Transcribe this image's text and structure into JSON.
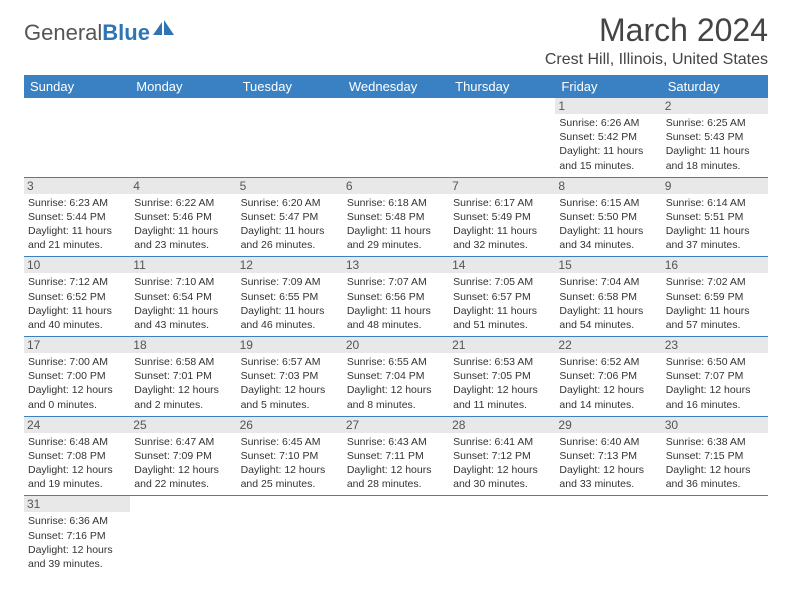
{
  "logo": {
    "text1": "General",
    "text2": "Blue"
  },
  "title": "March 2024",
  "location": "Crest Hill, Illinois, United States",
  "colors": {
    "header_bg": "#3a81c4",
    "header_text": "#ffffff",
    "row_border": "#3a81c4",
    "daynum_bg": "#e8e8e8",
    "logo_blue": "#2e75b6"
  },
  "day_headers": [
    "Sunday",
    "Monday",
    "Tuesday",
    "Wednesday",
    "Thursday",
    "Friday",
    "Saturday"
  ],
  "weeks": [
    [
      {
        "empty": true
      },
      {
        "empty": true
      },
      {
        "empty": true
      },
      {
        "empty": true
      },
      {
        "empty": true
      },
      {
        "num": "1",
        "sunrise": "6:26 AM",
        "sunset": "5:42 PM",
        "daylight": "11 hours and 15 minutes."
      },
      {
        "num": "2",
        "sunrise": "6:25 AM",
        "sunset": "5:43 PM",
        "daylight": "11 hours and 18 minutes."
      }
    ],
    [
      {
        "num": "3",
        "sunrise": "6:23 AM",
        "sunset": "5:44 PM",
        "daylight": "11 hours and 21 minutes."
      },
      {
        "num": "4",
        "sunrise": "6:22 AM",
        "sunset": "5:46 PM",
        "daylight": "11 hours and 23 minutes."
      },
      {
        "num": "5",
        "sunrise": "6:20 AM",
        "sunset": "5:47 PM",
        "daylight": "11 hours and 26 minutes."
      },
      {
        "num": "6",
        "sunrise": "6:18 AM",
        "sunset": "5:48 PM",
        "daylight": "11 hours and 29 minutes."
      },
      {
        "num": "7",
        "sunrise": "6:17 AM",
        "sunset": "5:49 PM",
        "daylight": "11 hours and 32 minutes."
      },
      {
        "num": "8",
        "sunrise": "6:15 AM",
        "sunset": "5:50 PM",
        "daylight": "11 hours and 34 minutes."
      },
      {
        "num": "9",
        "sunrise": "6:14 AM",
        "sunset": "5:51 PM",
        "daylight": "11 hours and 37 minutes."
      }
    ],
    [
      {
        "num": "10",
        "sunrise": "7:12 AM",
        "sunset": "6:52 PM",
        "daylight": "11 hours and 40 minutes."
      },
      {
        "num": "11",
        "sunrise": "7:10 AM",
        "sunset": "6:54 PM",
        "daylight": "11 hours and 43 minutes."
      },
      {
        "num": "12",
        "sunrise": "7:09 AM",
        "sunset": "6:55 PM",
        "daylight": "11 hours and 46 minutes."
      },
      {
        "num": "13",
        "sunrise": "7:07 AM",
        "sunset": "6:56 PM",
        "daylight": "11 hours and 48 minutes."
      },
      {
        "num": "14",
        "sunrise": "7:05 AM",
        "sunset": "6:57 PM",
        "daylight": "11 hours and 51 minutes."
      },
      {
        "num": "15",
        "sunrise": "7:04 AM",
        "sunset": "6:58 PM",
        "daylight": "11 hours and 54 minutes."
      },
      {
        "num": "16",
        "sunrise": "7:02 AM",
        "sunset": "6:59 PM",
        "daylight": "11 hours and 57 minutes."
      }
    ],
    [
      {
        "num": "17",
        "sunrise": "7:00 AM",
        "sunset": "7:00 PM",
        "daylight": "12 hours and 0 minutes."
      },
      {
        "num": "18",
        "sunrise": "6:58 AM",
        "sunset": "7:01 PM",
        "daylight": "12 hours and 2 minutes."
      },
      {
        "num": "19",
        "sunrise": "6:57 AM",
        "sunset": "7:03 PM",
        "daylight": "12 hours and 5 minutes."
      },
      {
        "num": "20",
        "sunrise": "6:55 AM",
        "sunset": "7:04 PM",
        "daylight": "12 hours and 8 minutes."
      },
      {
        "num": "21",
        "sunrise": "6:53 AM",
        "sunset": "7:05 PM",
        "daylight": "12 hours and 11 minutes."
      },
      {
        "num": "22",
        "sunrise": "6:52 AM",
        "sunset": "7:06 PM",
        "daylight": "12 hours and 14 minutes."
      },
      {
        "num": "23",
        "sunrise": "6:50 AM",
        "sunset": "7:07 PM",
        "daylight": "12 hours and 16 minutes."
      }
    ],
    [
      {
        "num": "24",
        "sunrise": "6:48 AM",
        "sunset": "7:08 PM",
        "daylight": "12 hours and 19 minutes."
      },
      {
        "num": "25",
        "sunrise": "6:47 AM",
        "sunset": "7:09 PM",
        "daylight": "12 hours and 22 minutes."
      },
      {
        "num": "26",
        "sunrise": "6:45 AM",
        "sunset": "7:10 PM",
        "daylight": "12 hours and 25 minutes."
      },
      {
        "num": "27",
        "sunrise": "6:43 AM",
        "sunset": "7:11 PM",
        "daylight": "12 hours and 28 minutes."
      },
      {
        "num": "28",
        "sunrise": "6:41 AM",
        "sunset": "7:12 PM",
        "daylight": "12 hours and 30 minutes."
      },
      {
        "num": "29",
        "sunrise": "6:40 AM",
        "sunset": "7:13 PM",
        "daylight": "12 hours and 33 minutes."
      },
      {
        "num": "30",
        "sunrise": "6:38 AM",
        "sunset": "7:15 PM",
        "daylight": "12 hours and 36 minutes."
      }
    ],
    [
      {
        "num": "31",
        "sunrise": "6:36 AM",
        "sunset": "7:16 PM",
        "daylight": "12 hours and 39 minutes."
      },
      {
        "empty": true
      },
      {
        "empty": true
      },
      {
        "empty": true
      },
      {
        "empty": true
      },
      {
        "empty": true
      },
      {
        "empty": true
      }
    ]
  ],
  "labels": {
    "sunrise": "Sunrise: ",
    "sunset": "Sunset: ",
    "daylight": "Daylight: "
  }
}
